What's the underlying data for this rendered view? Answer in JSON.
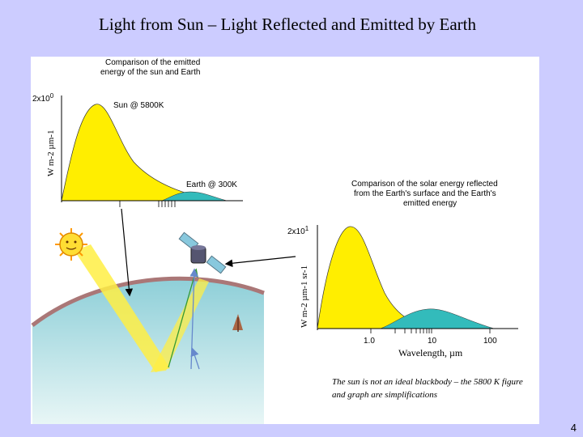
{
  "slide": {
    "title": "Light from Sun – Light Reflected and Emitted by Earth",
    "page_number": "4",
    "note": "The sun is not an ideal blackbody – the 5800 K figure and graph are simplifications"
  },
  "chart_emitted": {
    "title_line1": "Comparison of the emitted",
    "title_line2": "energy of the sun and Earth",
    "ylabel": "W m-2 µm-1",
    "ytick": "2x10",
    "ytick_exp": "0",
    "sun_label": "Sun @ 5800K",
    "earth_label": "Earth @ 300K",
    "colors": {
      "sun": "#ffee00",
      "earth": "#33bbbb"
    }
  },
  "chart_reflected": {
    "title_line1": "Comparison of the solar energy reflected",
    "title_line2": "from the Earth's surface and the Earth's",
    "title_line3": "emitted energy",
    "ylabel": "W m-2 µm-1 sr-1",
    "ytick": "2x10",
    "ytick_exp": "1",
    "xlabel": "Wavelength, µm",
    "xticks": [
      "1.0",
      "10",
      "100"
    ],
    "colors": {
      "reflected": "#ffee00",
      "emitted": "#33bbbb"
    }
  },
  "diagram": {
    "colors": {
      "beam": "#ffee44",
      "earth": "#aadddd",
      "sun": "#ffdd33"
    },
    "icons": [
      "sun-icon",
      "satellite-icon",
      "earth-surface",
      "tree-icon"
    ]
  }
}
